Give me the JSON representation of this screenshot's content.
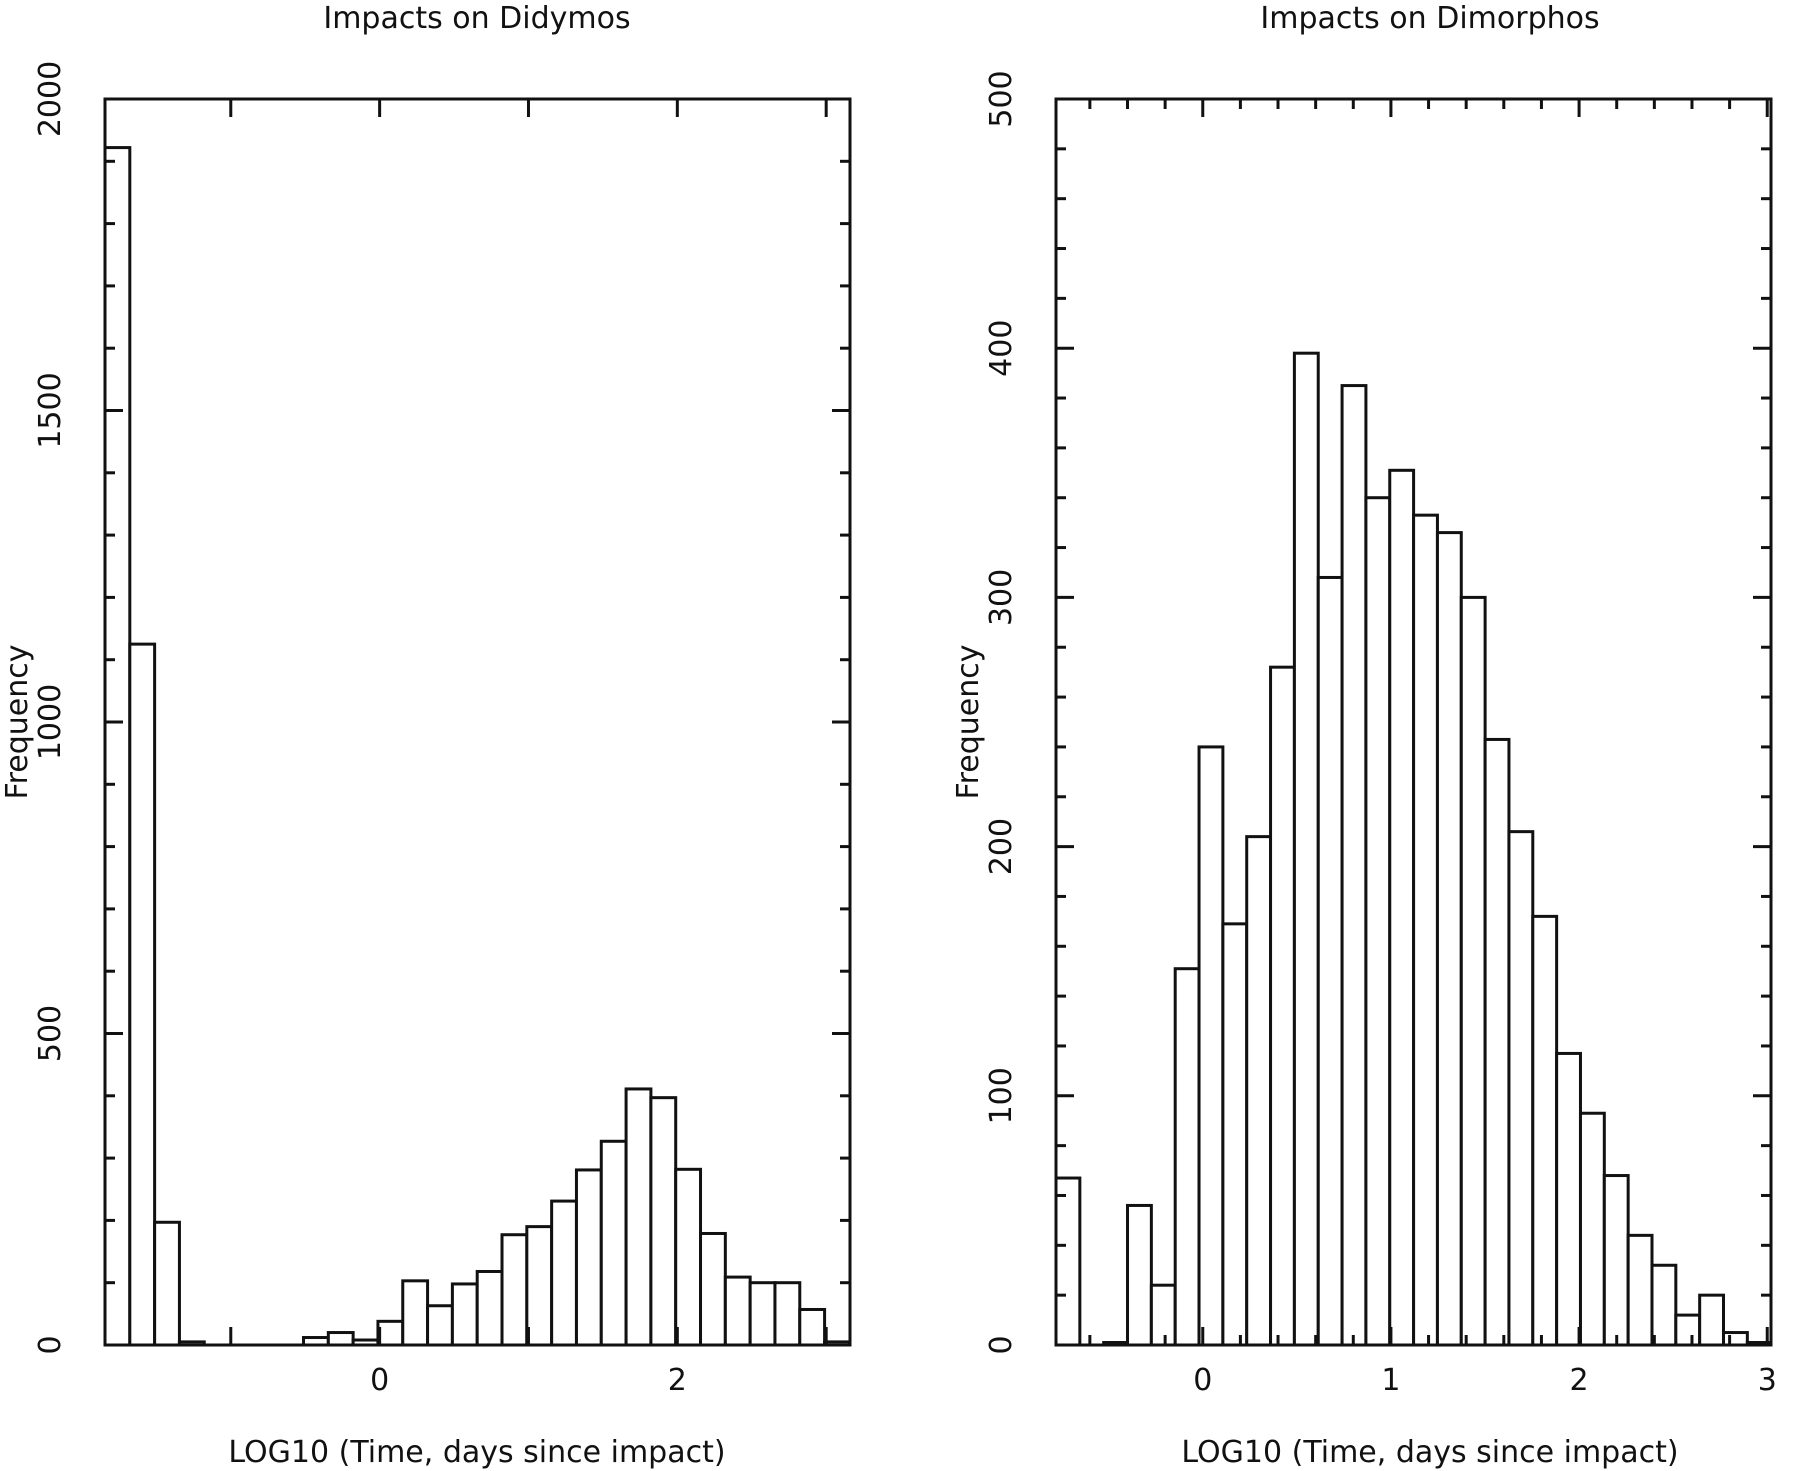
{
  "chart_data": [
    {
      "type": "bar",
      "title": "Impacts on Didymos",
      "xlabel": "LOG10 (Time, days since impact)",
      "ylabel": "Frequency",
      "xlim": [
        -1.845,
        3.16
      ],
      "ylim": [
        0,
        2000
      ],
      "xticks": [
        0,
        2
      ],
      "xminor": 1,
      "yticks": [
        0,
        500,
        1000,
        1500,
        2000
      ],
      "yminor": 100,
      "bin_start": -1.845,
      "bin_width": 0.1667,
      "values": [
        1922,
        1125,
        197,
        5,
        0,
        0,
        0,
        0,
        12,
        20,
        8,
        38,
        103,
        63,
        98,
        118,
        177,
        190,
        231,
        281,
        327,
        411,
        397,
        282,
        179,
        109,
        100,
        100,
        57,
        5
      ]
    },
    {
      "type": "bar",
      "title": "Impacts on Dimorphos",
      "xlabel": "LOG10 (Time, days since impact)",
      "ylabel": "Frequency",
      "xlim": [
        -0.78,
        3.02
      ],
      "ylim": [
        0,
        500
      ],
      "xticks": [
        0,
        1,
        2,
        3
      ],
      "xminor": 0.2,
      "yticks": [
        0,
        100,
        200,
        300,
        400,
        500
      ],
      "yminor": 20,
      "bin_start": -0.78,
      "bin_width": 0.1267,
      "values": [
        67,
        0,
        1,
        56,
        24,
        151,
        240,
        169,
        204,
        272,
        398,
        308,
        385,
        340,
        351,
        333,
        326,
        300,
        243,
        206,
        172,
        117,
        93,
        68,
        44,
        32,
        12,
        20,
        5,
        1
      ]
    }
  ]
}
